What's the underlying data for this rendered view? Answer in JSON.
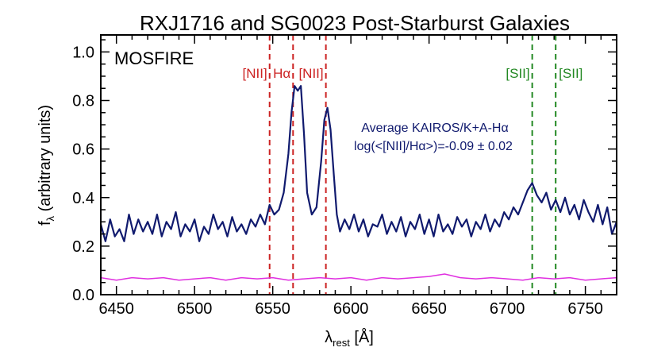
{
  "chart_data": {
    "type": "line",
    "title": "RXJ1716 and SG0023 Post-Starburst Galaxies",
    "xlabel": {
      "main": "λ",
      "sub": "rest",
      "unit": " [Å]"
    },
    "ylabel": {
      "main": "f",
      "sub": "λ",
      "unit": " (arbitrary units)"
    },
    "xlim": [
      6440,
      6770
    ],
    "ylim": [
      0.0,
      1.07
    ],
    "x_ticks": [
      6450,
      6500,
      6550,
      6600,
      6650,
      6700,
      6750
    ],
    "x_tick_labels": [
      "6450",
      "6500",
      "6550",
      "6600",
      "6650",
      "6700",
      "6750"
    ],
    "y_ticks": [
      0.0,
      0.2,
      0.4,
      0.6,
      0.8,
      1.0
    ],
    "y_tick_labels": [
      "0.0",
      "0.2",
      "0.4",
      "0.6",
      "0.8",
      "1.0"
    ],
    "instrument_label": "MOSFIRE",
    "annotation_lines": [
      "Average KAIROS/K+A-Hα",
      "log(<[NII]/Hα>)=-0.09 ± 0.02"
    ],
    "emission_lines": [
      {
        "x": 6548,
        "label": "[NII]",
        "label_side": "left",
        "color": "#cc2222"
      },
      {
        "x": 6563,
        "label": "Hα",
        "label_side": "left",
        "color": "#cc2222"
      },
      {
        "x": 6584,
        "label": "[NII]",
        "label_side": "left",
        "color": "#cc2222"
      },
      {
        "x": 6716,
        "label": "[SII]",
        "label_side": "left",
        "color": "#228822"
      },
      {
        "x": 6731,
        "label": "[SII]",
        "label_side": "right",
        "color": "#228822"
      }
    ],
    "series": [
      {
        "color": "#101a6e",
        "x": [
          6440,
          6443,
          6446,
          6449,
          6452,
          6455,
          6458,
          6461,
          6464,
          6467,
          6470,
          6473,
          6476,
          6479,
          6482,
          6485,
          6488,
          6491,
          6494,
          6497,
          6500,
          6503,
          6506,
          6509,
          6512,
          6515,
          6518,
          6521,
          6524,
          6527,
          6530,
          6533,
          6536,
          6539,
          6542,
          6545,
          6548,
          6551,
          6554,
          6557,
          6560,
          6562,
          6564,
          6566,
          6568,
          6570,
          6572,
          6575,
          6578,
          6581,
          6583,
          6585,
          6587,
          6589,
          6591,
          6593,
          6596,
          6599,
          6602,
          6605,
          6608,
          6611,
          6614,
          6617,
          6620,
          6623,
          6626,
          6629,
          6632,
          6635,
          6638,
          6641,
          6644,
          6647,
          6650,
          6653,
          6656,
          6659,
          6662,
          6665,
          6668,
          6671,
          6674,
          6677,
          6680,
          6683,
          6686,
          6689,
          6692,
          6695,
          6698,
          6701,
          6704,
          6707,
          6710,
          6713,
          6716,
          6719,
          6722,
          6725,
          6728,
          6731,
          6734,
          6737,
          6740,
          6743,
          6746,
          6749,
          6752,
          6755,
          6758,
          6761,
          6764,
          6767,
          6770
        ],
        "y": [
          0.29,
          0.22,
          0.31,
          0.24,
          0.27,
          0.22,
          0.33,
          0.25,
          0.31,
          0.26,
          0.3,
          0.25,
          0.33,
          0.24,
          0.3,
          0.27,
          0.34,
          0.24,
          0.29,
          0.26,
          0.31,
          0.22,
          0.28,
          0.25,
          0.33,
          0.27,
          0.3,
          0.24,
          0.32,
          0.26,
          0.29,
          0.25,
          0.31,
          0.28,
          0.33,
          0.29,
          0.37,
          0.33,
          0.35,
          0.42,
          0.58,
          0.75,
          0.86,
          0.84,
          0.86,
          0.66,
          0.42,
          0.33,
          0.36,
          0.55,
          0.72,
          0.77,
          0.68,
          0.5,
          0.33,
          0.26,
          0.31,
          0.27,
          0.33,
          0.26,
          0.31,
          0.24,
          0.29,
          0.28,
          0.33,
          0.25,
          0.3,
          0.26,
          0.32,
          0.24,
          0.3,
          0.27,
          0.33,
          0.25,
          0.31,
          0.24,
          0.33,
          0.26,
          0.29,
          0.25,
          0.32,
          0.28,
          0.31,
          0.24,
          0.3,
          0.27,
          0.33,
          0.26,
          0.31,
          0.28,
          0.34,
          0.31,
          0.36,
          0.33,
          0.38,
          0.43,
          0.46,
          0.41,
          0.38,
          0.42,
          0.35,
          0.39,
          0.34,
          0.4,
          0.33,
          0.37,
          0.31,
          0.39,
          0.34,
          0.3,
          0.37,
          0.29,
          0.36,
          0.25,
          0.3
        ]
      },
      {
        "color": "#e030e0",
        "x": [
          6440,
          6450,
          6460,
          6470,
          6480,
          6490,
          6500,
          6510,
          6520,
          6530,
          6540,
          6550,
          6560,
          6570,
          6580,
          6590,
          6600,
          6610,
          6620,
          6630,
          6640,
          6650,
          6660,
          6670,
          6680,
          6690,
          6700,
          6710,
          6720,
          6730,
          6740,
          6750,
          6760,
          6770
        ],
        "y": [
          0.07,
          0.06,
          0.07,
          0.065,
          0.07,
          0.06,
          0.065,
          0.07,
          0.06,
          0.07,
          0.065,
          0.07,
          0.06,
          0.065,
          0.07,
          0.065,
          0.07,
          0.06,
          0.07,
          0.065,
          0.07,
          0.075,
          0.085,
          0.07,
          0.065,
          0.07,
          0.065,
          0.06,
          0.07,
          0.065,
          0.07,
          0.06,
          0.065,
          0.07
        ]
      }
    ]
  }
}
